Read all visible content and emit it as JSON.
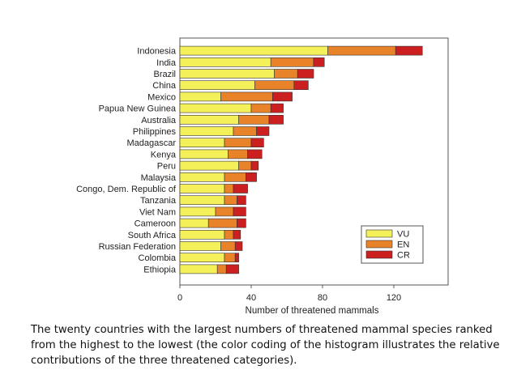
{
  "chart_data": {
    "type": "bar",
    "orientation": "horizontal",
    "stacked": true,
    "categories": [
      "Indonesia",
      "India",
      "Brazil",
      "China",
      "Mexico",
      "Papua New Guinea",
      "Australia",
      "Philippines",
      "Madagascar",
      "Kenya",
      "Peru",
      "Malaysia",
      "Congo, Dem. Republic of",
      "Tanzania",
      "Viet Nam",
      "Cameroon",
      "South Africa",
      "Russian Federation",
      "Colombia",
      "Ethiopia"
    ],
    "series": [
      {
        "name": "VU",
        "color": "#f4f05a",
        "values": [
          83,
          51,
          53,
          42,
          23,
          40,
          33,
          30,
          25,
          27,
          33,
          25,
          25,
          25,
          20,
          16,
          25,
          23,
          25,
          21
        ]
      },
      {
        "name": "EN",
        "color": "#e8832a",
        "values": [
          38,
          24,
          13,
          22,
          29,
          11,
          17,
          13,
          15,
          11,
          7,
          12,
          5,
          7,
          10,
          16,
          5,
          8,
          6,
          5
        ]
      },
      {
        "name": "CR",
        "color": "#cc1f1f",
        "values": [
          15,
          6,
          9,
          8,
          11,
          7,
          8,
          7,
          7,
          8,
          4,
          6,
          8,
          5,
          7,
          5,
          4,
          4,
          2,
          7
        ]
      }
    ],
    "title": "",
    "xlabel": "Number of threatened mammals",
    "ylabel": "",
    "xlim": [
      0,
      150
    ],
    "xticks": [
      0,
      40,
      80,
      120
    ],
    "grid": false,
    "legend_position": "bottom-right"
  },
  "caption": "The twenty countries with the largest numbers of threatened mammal species ranked from the highest to the lowest (the color coding of the histogram illustrates the relative contributions of the three threatened categories)."
}
